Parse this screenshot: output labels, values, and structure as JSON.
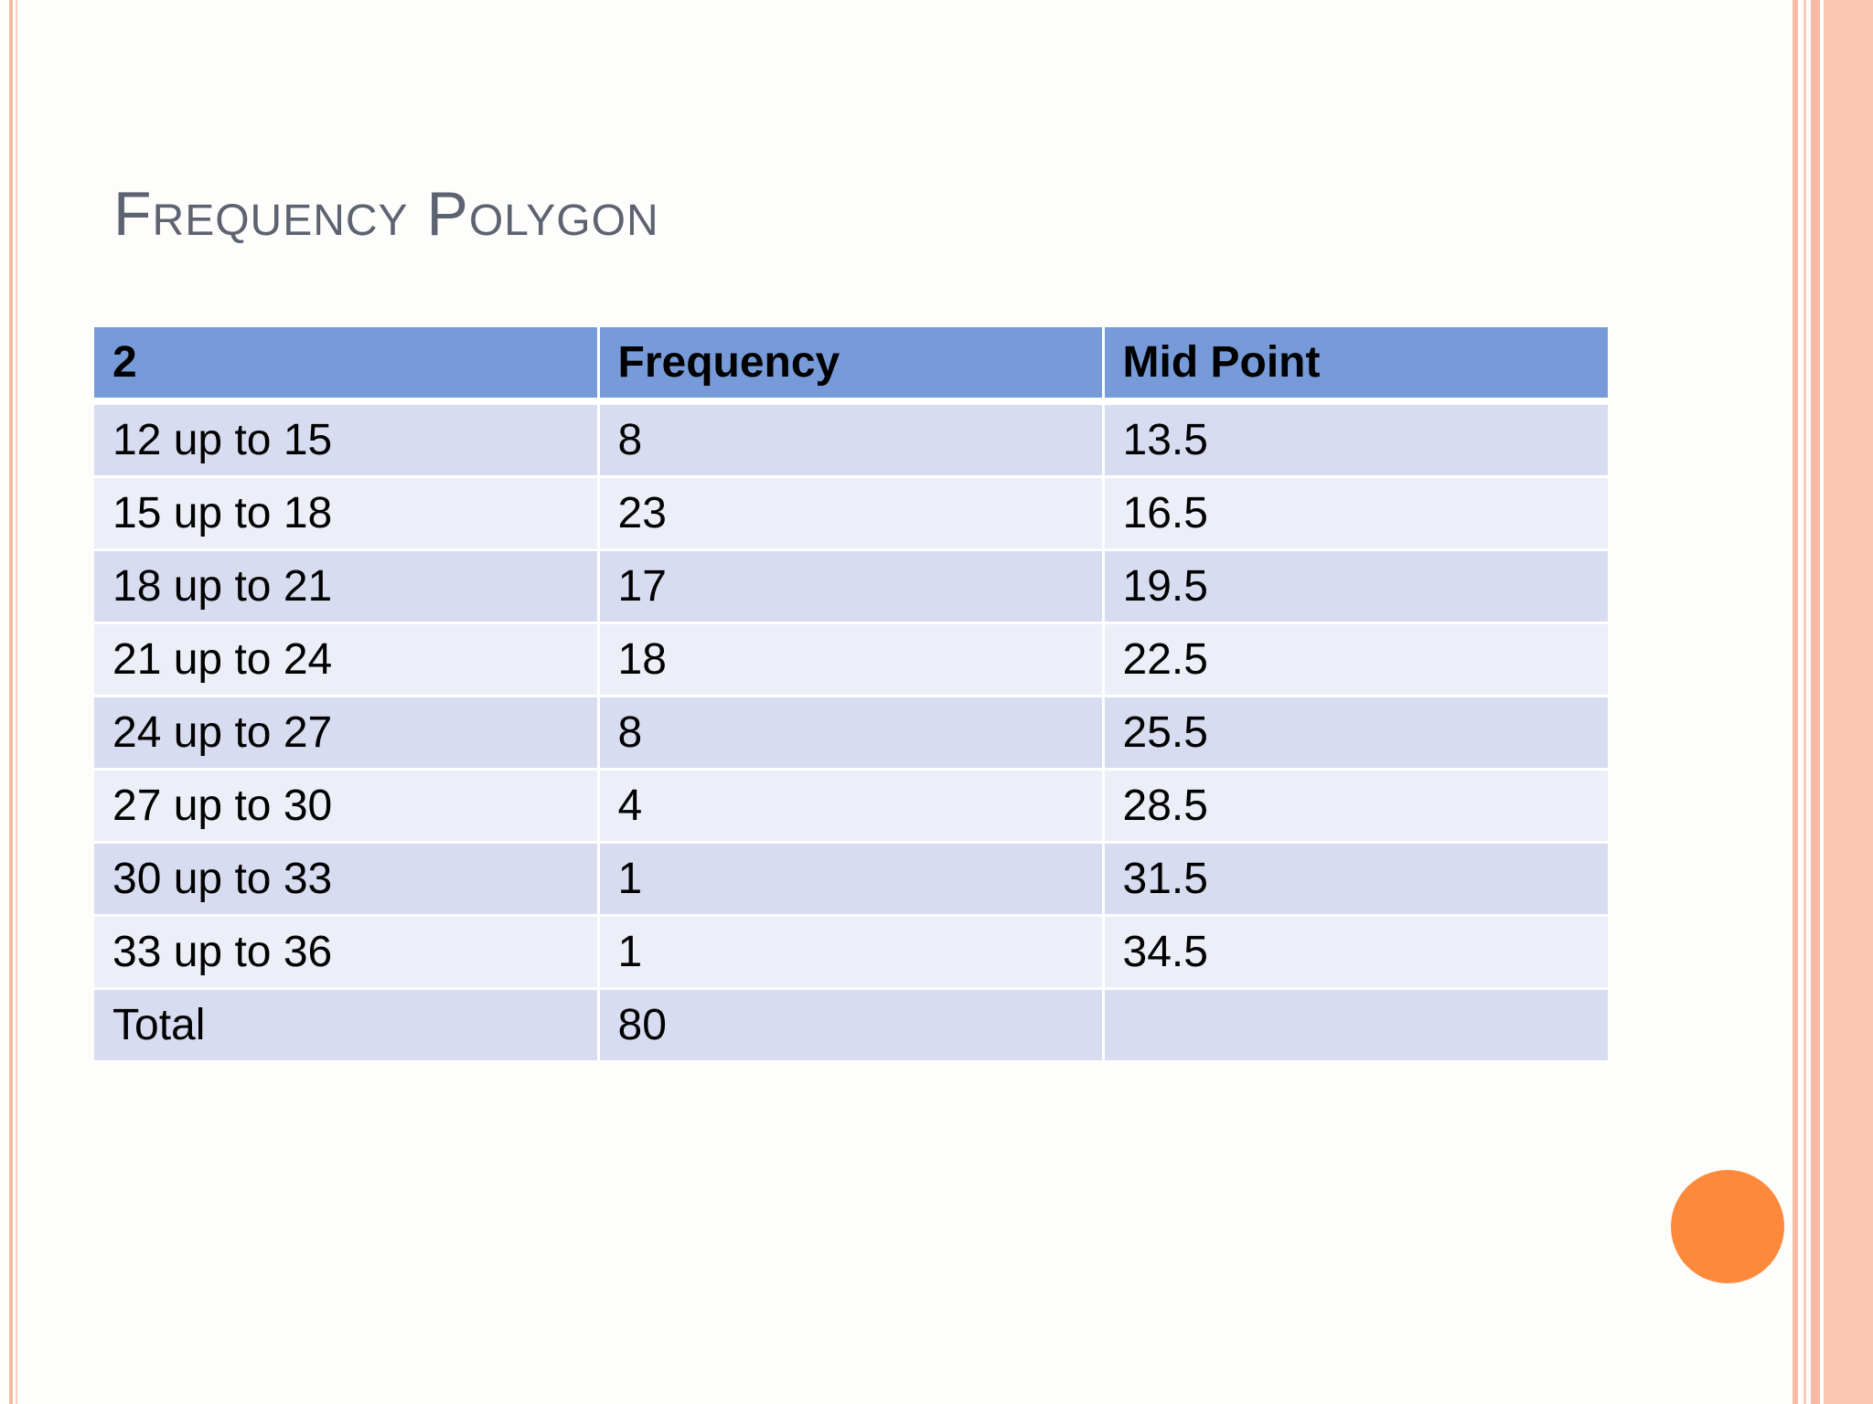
{
  "slide": {
    "title": "Frequency Polygon",
    "accent_color": "#fd8a3c",
    "header_color": "#779bd8"
  },
  "table": {
    "headers": [
      "2",
      "Frequency",
      "Mid Point"
    ],
    "rows": [
      [
        "12 up to 15",
        "8",
        "13.5"
      ],
      [
        "15 up to 18",
        "23",
        "16.5"
      ],
      [
        "18 up to 21",
        "17",
        "19.5"
      ],
      [
        "21 up to 24",
        "18",
        "22.5"
      ],
      [
        "24 up to 27",
        "8",
        "25.5"
      ],
      [
        "27 up to 30",
        "4",
        "28.5"
      ],
      [
        "30 up to 33",
        "1",
        "31.5"
      ],
      [
        "33 up to 36",
        "1",
        "34.5"
      ],
      [
        "Total",
        "80",
        ""
      ]
    ]
  }
}
